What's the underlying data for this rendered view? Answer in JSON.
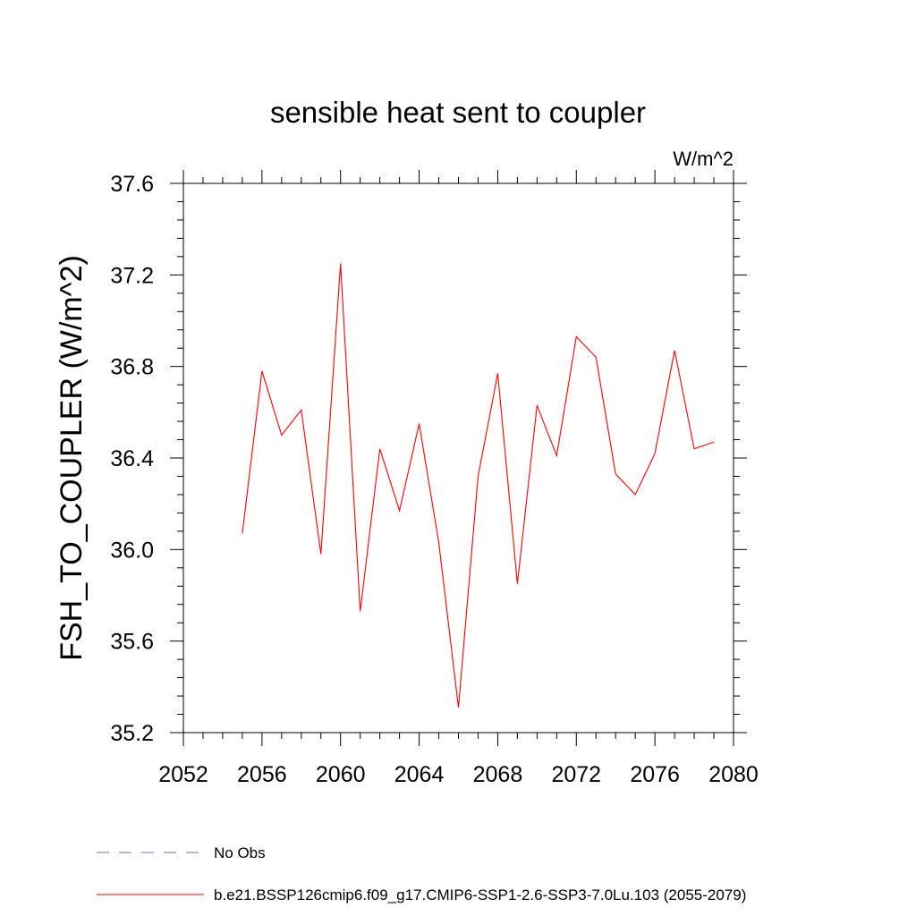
{
  "chart_data": {
    "type": "line",
    "title": "sensible heat sent to coupler",
    "units": "W/m^2",
    "ylabel": "FSH_TO_COUPLER  (W/m^2)",
    "xlabel": "",
    "xlim": [
      2052,
      2080
    ],
    "ylim": [
      35.2,
      37.6
    ],
    "xticks": [
      "2052",
      "2056",
      "2060",
      "2064",
      "2068",
      "2072",
      "2076",
      "2080"
    ],
    "yticks": [
      "35.2",
      "35.6",
      "36.0",
      "36.4",
      "36.8",
      "37.2",
      "37.6"
    ],
    "x": [
      2055,
      2056,
      2057,
      2058,
      2059,
      2060,
      2061,
      2062,
      2063,
      2064,
      2065,
      2066,
      2067,
      2068,
      2069,
      2070,
      2071,
      2072,
      2073,
      2074,
      2075,
      2076,
      2077,
      2078,
      2079
    ],
    "series": [
      {
        "name": "b.e21.BSSP126cmip6.f09_g17.CMIP6-SSP1-2.6-SSP3-7.0Lu.103 (2055-2079)",
        "color": "#ff0000",
        "values": [
          36.07,
          36.78,
          36.5,
          36.61,
          35.98,
          37.25,
          35.73,
          36.44,
          36.17,
          36.55,
          36.03,
          35.31,
          36.32,
          36.77,
          35.85,
          36.63,
          36.41,
          36.93,
          36.84,
          36.33,
          36.24,
          36.42,
          36.87,
          36.44,
          36.47
        ]
      }
    ],
    "legend": {
      "placement": "bottom-left",
      "entries": [
        {
          "label": "No Obs",
          "color": "#6e6ec8",
          "style": "dashed"
        },
        {
          "label": "b.e21.BSSP126cmip6.f09_g17.CMIP6-SSP1-2.6-SSP3-7.0Lu.103 (2055-2079)",
          "color": "#ff0000",
          "style": "solid"
        }
      ]
    },
    "grid": false
  }
}
